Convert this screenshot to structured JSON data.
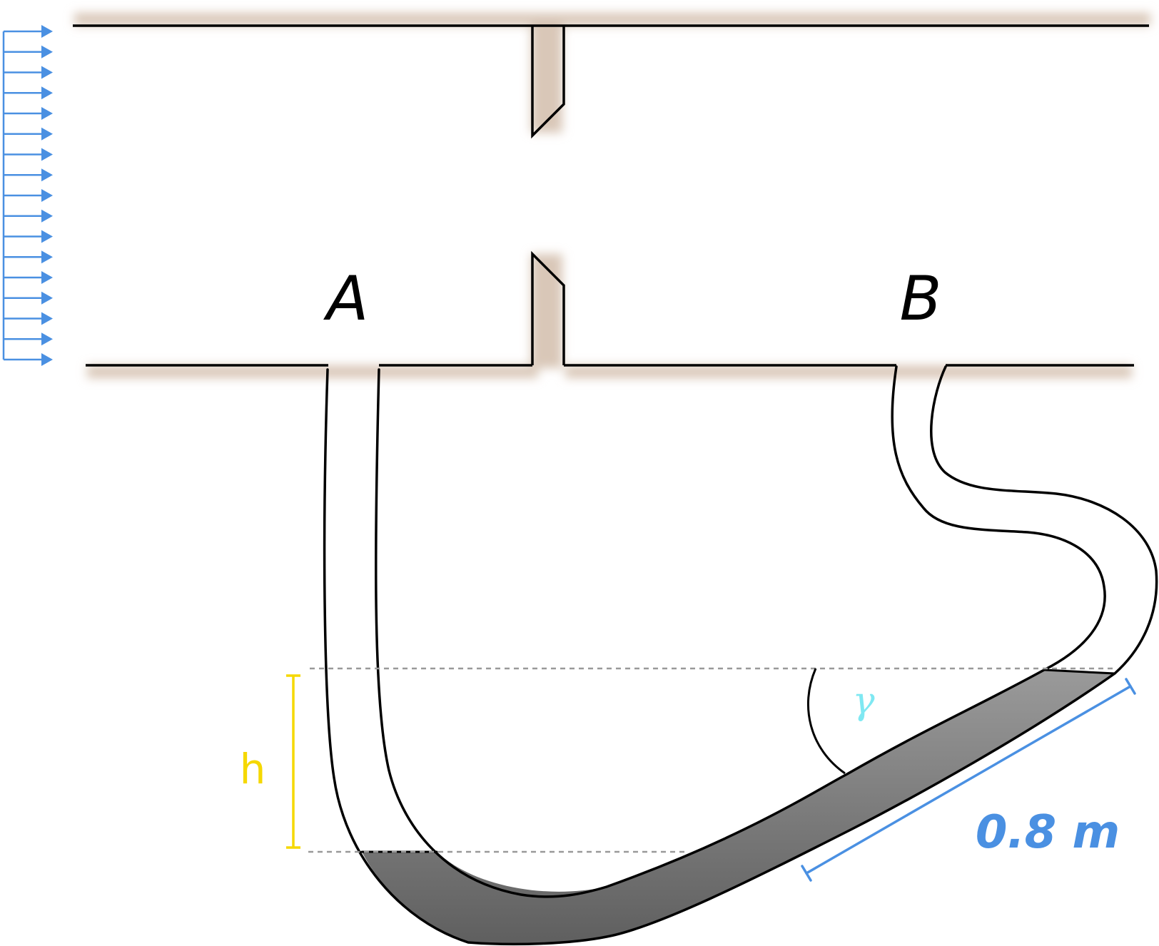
{
  "labels": {
    "tap_a": "A",
    "tap_b": "B",
    "height": "h",
    "angle": "γ",
    "length": "0.8 m"
  },
  "colors": {
    "flow_arrows": "#4a90e2",
    "height_marker": "#f5d800",
    "angle_label": "#7fe8f2",
    "length_marker": "#4a90e2",
    "manometer_fluid_dark": "#5f5f5f",
    "manometer_fluid_light": "#9a9a9a",
    "outline": "#000000",
    "wall_shadow": "#d9c7b8",
    "reference_lines": "#999999"
  },
  "icons": {
    "flow_arrow": "right-arrow-icon"
  }
}
